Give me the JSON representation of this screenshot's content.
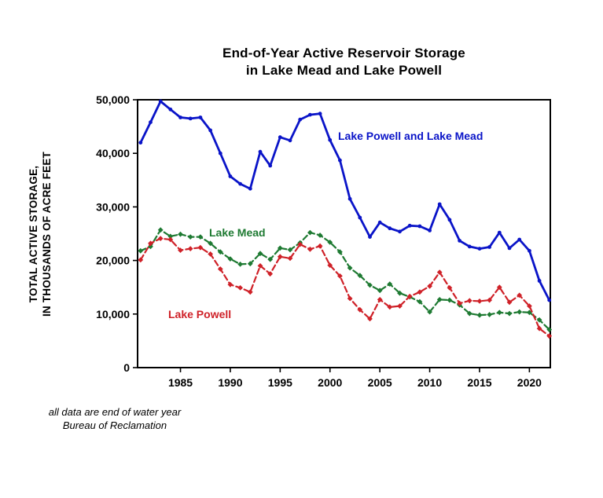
{
  "title": {
    "line1": "End-of-Year Active Reservoir Storage",
    "line2": "in Lake Mead and Lake Powell"
  },
  "y_axis_label": {
    "line1": "TOTAL ACTIVE STORAGE,",
    "line2": "IN THOUSANDS OF ACRE FEET"
  },
  "footer": {
    "line1": "all data are end of water year",
    "line2": "Bureau of Reclamation"
  },
  "chart_data": {
    "type": "line",
    "title": "End-of-Year Active Reservoir Storage in Lake Mead and Lake Powell",
    "xlabel": "",
    "ylabel": "TOTAL ACTIVE STORAGE, IN THOUSANDS OF ACRE FEET",
    "grid": false,
    "legend_position": "inline-annotations",
    "xlim": [
      1980.7,
      2022.1
    ],
    "ylim": [
      0,
      50000
    ],
    "x_label_ticks": [
      1985,
      1990,
      1995,
      2000,
      2005,
      2010,
      2015,
      2020
    ],
    "y_ticks": [
      {
        "value": 0,
        "label": "0"
      },
      {
        "value": 10000,
        "label": "10,000"
      },
      {
        "value": 20000,
        "label": "20,000"
      },
      {
        "value": 30000,
        "label": "30,000"
      },
      {
        "value": 40000,
        "label": "40,000"
      },
      {
        "value": 50000,
        "label": "50,000"
      }
    ],
    "x": [
      1981,
      1982,
      1983,
      1984,
      1985,
      1986,
      1987,
      1988,
      1989,
      1990,
      1991,
      1992,
      1993,
      1994,
      1995,
      1996,
      1997,
      1998,
      1999,
      2000,
      2001,
      2002,
      2003,
      2004,
      2005,
      2006,
      2007,
      2008,
      2009,
      2010,
      2011,
      2012,
      2013,
      2014,
      2015,
      2016,
      2017,
      2018,
      2019,
      2020,
      2021,
      2022
    ],
    "series": [
      {
        "id": "combined",
        "name": "Lake Powell and Lake Mead",
        "color": "#0a14c8",
        "line_style": "solid",
        "marker": "circle",
        "values": [
          42000,
          45800,
          49700,
          48200,
          46700,
          46500,
          46700,
          44300,
          40000,
          35700,
          34300,
          33400,
          40300,
          37700,
          43000,
          42400,
          46300,
          47200,
          47400,
          42500,
          38700,
          31500,
          28000,
          24400,
          27100,
          26000,
          25400,
          26500,
          26400,
          25600,
          30500,
          27600,
          23700,
          22600,
          22200,
          22500,
          25200,
          22300,
          23900,
          21800,
          16200,
          12600
        ]
      },
      {
        "id": "mead",
        "name": "Lake Mead",
        "color": "#1e7a32",
        "line_style": "dashed",
        "marker": "diamond",
        "values": [
          21800,
          22600,
          25700,
          24500,
          24900,
          24400,
          24400,
          23200,
          21600,
          20300,
          19300,
          19400,
          21300,
          20200,
          22300,
          22000,
          23300,
          25200,
          24700,
          23400,
          21600,
          18600,
          17200,
          15400,
          14400,
          15600,
          13900,
          13200,
          12300,
          10400,
          12700,
          12600,
          11700,
          10100,
          9800,
          9900,
          10300,
          10100,
          10400,
          10300,
          8900,
          7100
        ]
      },
      {
        "id": "powell",
        "name": "Lake Powell",
        "color": "#cf2128",
        "line_style": "dashed",
        "marker": "diamond",
        "values": [
          20100,
          23200,
          24100,
          23900,
          21900,
          22200,
          22400,
          21200,
          18400,
          15500,
          14900,
          14100,
          19000,
          17500,
          20700,
          20400,
          23000,
          22100,
          22700,
          19100,
          17100,
          12900,
          10800,
          9100,
          12700,
          11300,
          11500,
          13300,
          14100,
          15200,
          17800,
          14900,
          12000,
          12500,
          12400,
          12600,
          15000,
          12200,
          13500,
          11500,
          7300,
          5900
        ]
      }
    ],
    "annotations": [
      {
        "text": "Lake Powell and Lake Mead",
        "color": "#0a14c8"
      },
      {
        "text": "Lake Mead",
        "color": "#1e7a32"
      },
      {
        "text": "Lake Powell",
        "color": "#cf2128"
      }
    ]
  }
}
